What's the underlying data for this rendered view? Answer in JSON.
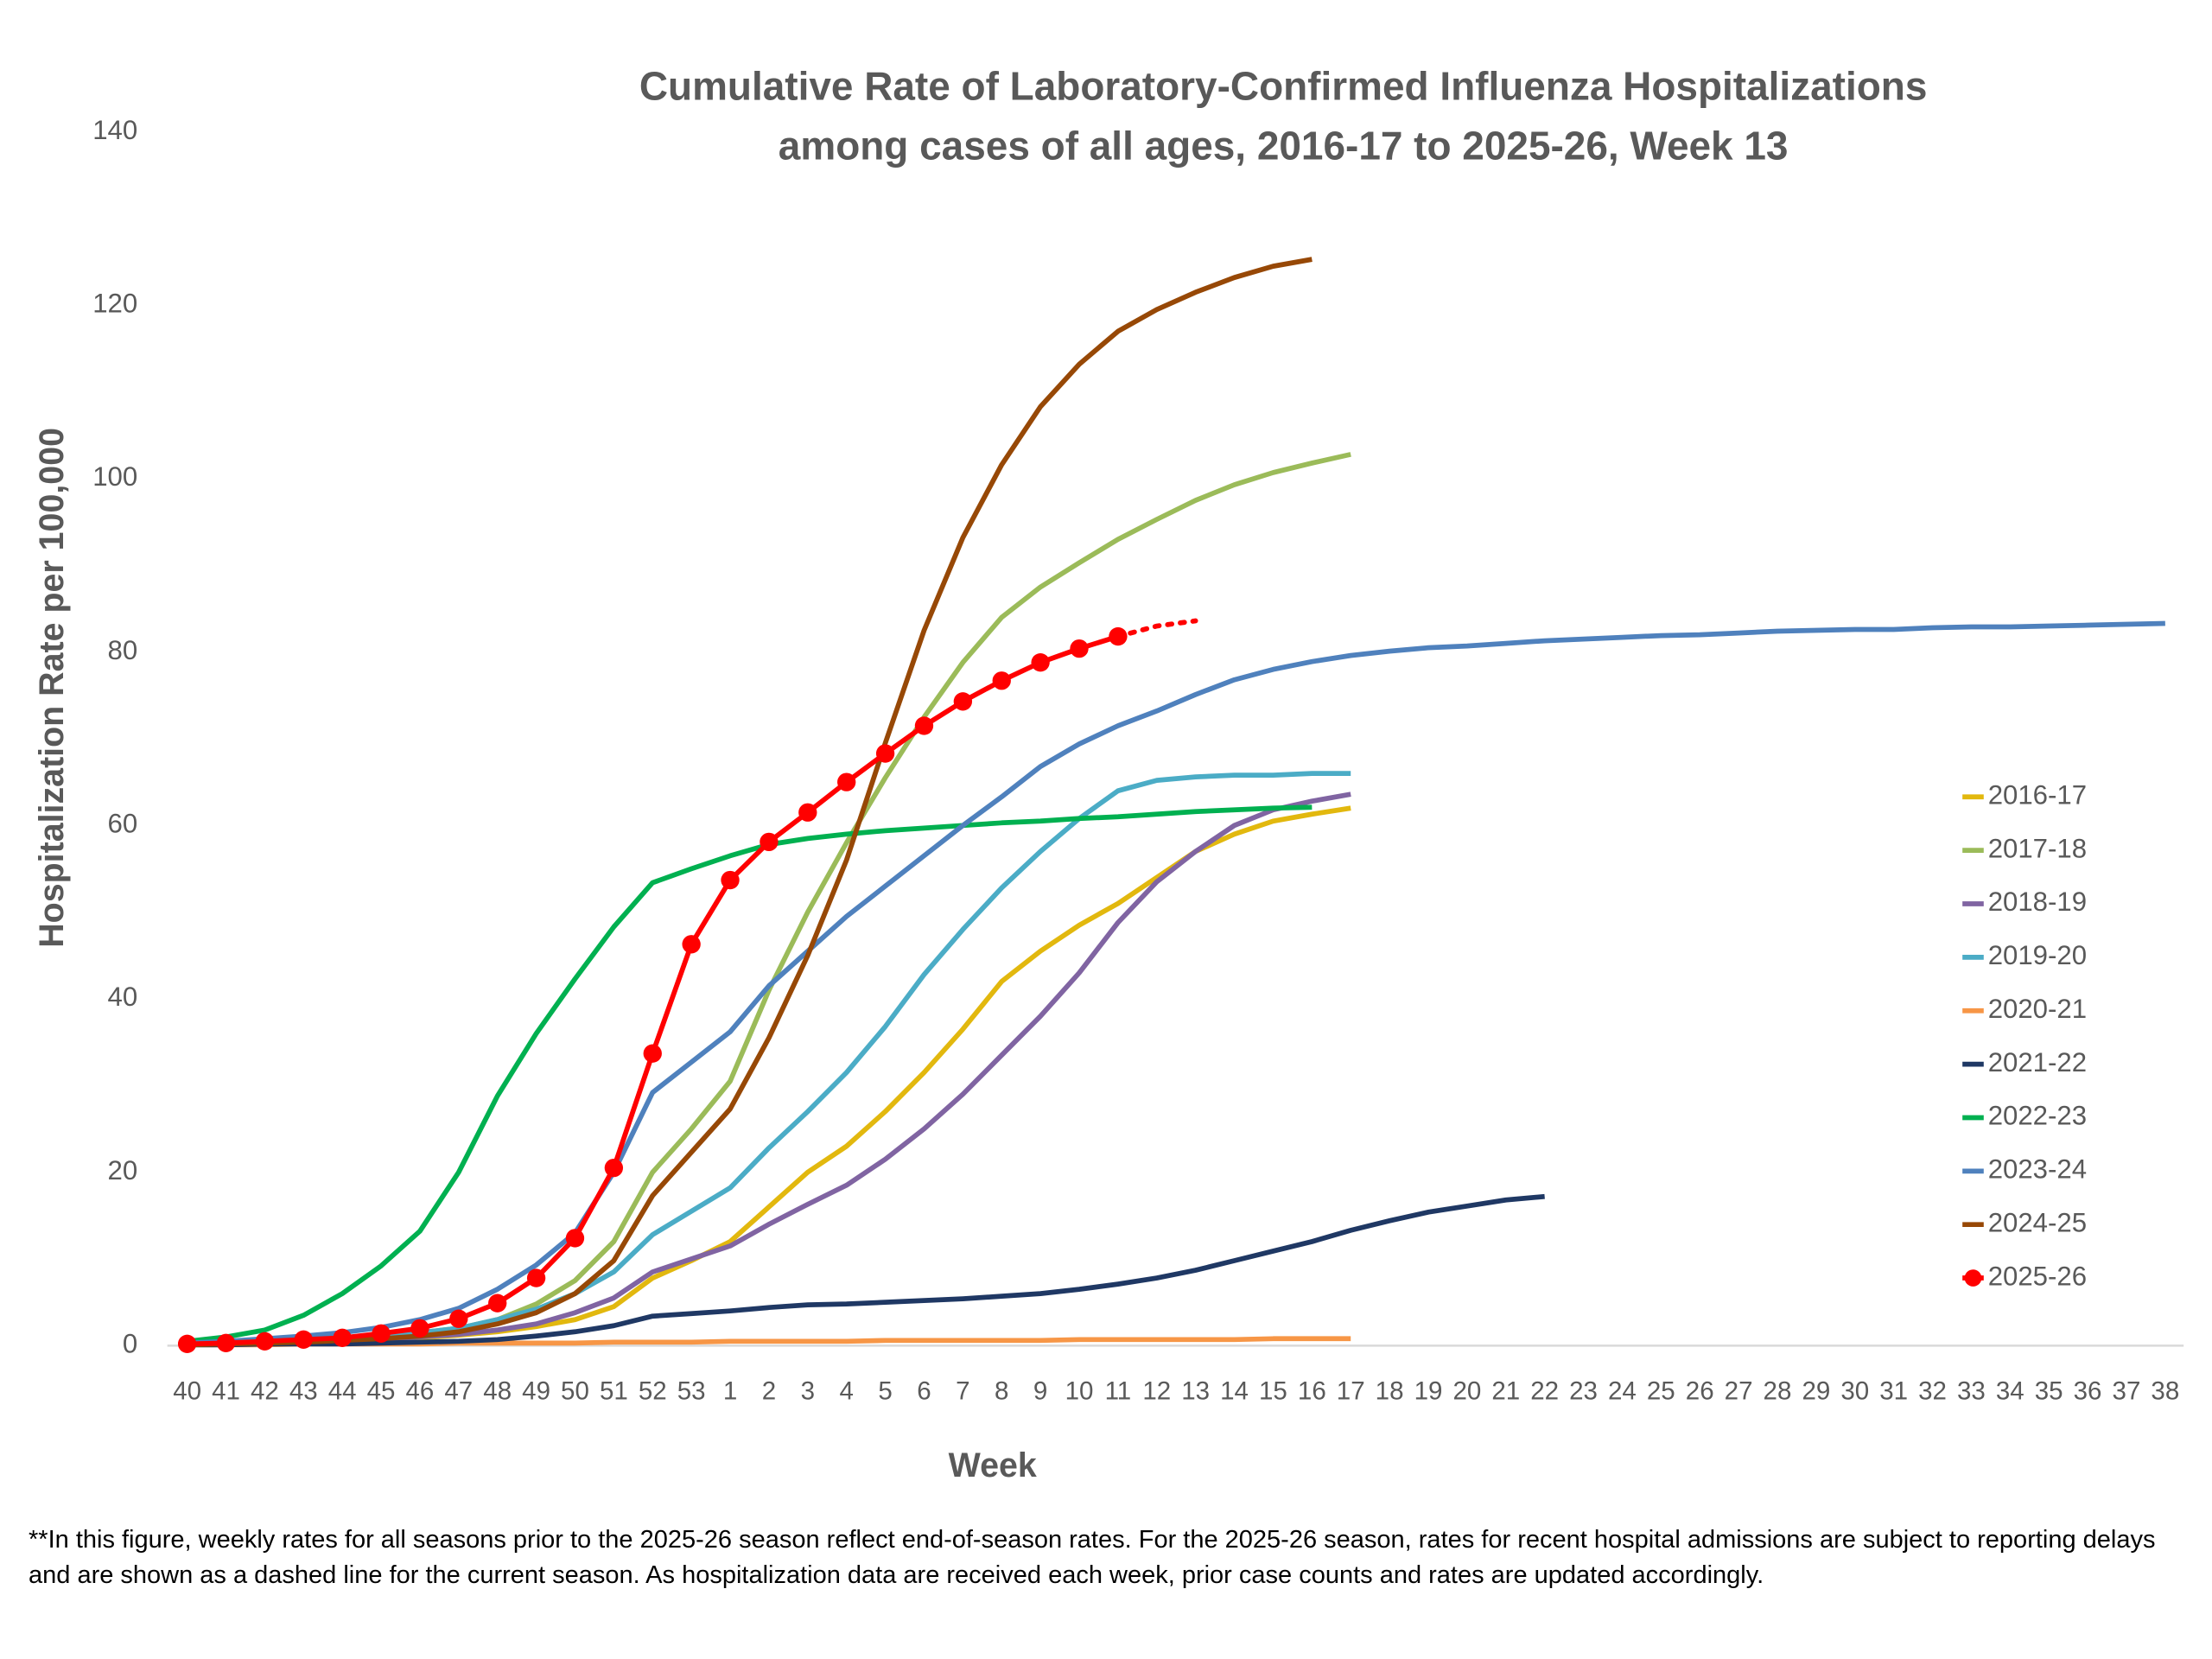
{
  "chart_data": {
    "type": "line",
    "title": [
      "Cumulative Rate of Laboratory-Confirmed Influenza Hospitalizations",
      "among cases of all ages, 2016-17 to 2025-26, Week 13"
    ],
    "x_label": "Week",
    "y_label": "Hospitalization Rate per 100,000",
    "footnote": "**In this figure, weekly rates for all seasons prior to the 2025-26 season reflect end-of-season rates. For the 2025-26 season, rates for recent hospital admissions are subject to reporting delays and are shown as a dashed line for the current season. As hospitalization data are received each week, prior case counts and rates are updated accordingly.",
    "categories": [
      "40",
      "41",
      "42",
      "43",
      "44",
      "45",
      "46",
      "47",
      "48",
      "49",
      "50",
      "51",
      "52",
      "53",
      "1",
      "2",
      "3",
      "4",
      "5",
      "6",
      "7",
      "8",
      "9",
      "10",
      "11",
      "12",
      "13",
      "14",
      "15",
      "16",
      "17",
      "18",
      "19",
      "20",
      "21",
      "22",
      "23",
      "24",
      "25",
      "26",
      "27",
      "28",
      "29",
      "30",
      "31",
      "32",
      "33",
      "34",
      "35",
      "36",
      "37",
      "38"
    ],
    "ylim": [
      0,
      140
    ],
    "yticks": [
      0,
      20,
      40,
      60,
      80,
      100,
      120,
      140
    ],
    "grid": false,
    "legend": "right",
    "series": [
      {
        "name": "2016-17",
        "color": "#e2b80e",
        "values": [
          0.1,
          0.2,
          0.3,
          0.4,
          0.5,
          0.7,
          0.9,
          1.2,
          1.6,
          2.2,
          3.0,
          4.5,
          7.8,
          9.8,
          12,
          16,
          20,
          23,
          27,
          31.5,
          36.5,
          42,
          45.5,
          48.5,
          51,
          54,
          57,
          59,
          60.5,
          61.3,
          62,
          null,
          null,
          null,
          null,
          null,
          null,
          null,
          null,
          null,
          null,
          null,
          null,
          null,
          null,
          null,
          null,
          null,
          null,
          null,
          null,
          null
        ]
      },
      {
        "name": "2017-18",
        "color": "#9bbb59",
        "values": [
          0.1,
          0.2,
          0.3,
          0.5,
          0.7,
          1,
          1.5,
          2,
          3,
          4.8,
          7.5,
          12,
          20,
          25,
          30.5,
          41,
          50,
          58,
          65.5,
          72.5,
          78.8,
          84,
          87.5,
          90.3,
          93,
          95.3,
          97.5,
          99.3,
          100.7,
          101.8,
          102.8,
          null,
          null,
          null,
          null,
          null,
          null,
          null,
          null,
          null,
          null,
          null,
          null,
          null,
          null,
          null,
          null,
          null,
          null,
          null,
          null,
          null
        ]
      },
      {
        "name": "2018-19",
        "color": "#8064a2",
        "values": [
          0.1,
          0.2,
          0.3,
          0.4,
          0.5,
          0.7,
          1,
          1.3,
          1.8,
          2.5,
          3.8,
          5.5,
          8.5,
          10,
          11.5,
          14,
          16.3,
          18.5,
          21.5,
          25,
          29,
          33.5,
          38,
          43,
          48.8,
          53.5,
          57,
          60,
          61.8,
          62.8,
          63.6,
          null,
          null,
          null,
          null,
          null,
          null,
          null,
          null,
          null,
          null,
          null,
          null,
          null,
          null,
          null,
          null,
          null,
          null,
          null,
          null,
          null
        ]
      },
      {
        "name": "2019-20",
        "color": "#4bacc6",
        "values": [
          0.1,
          0.2,
          0.4,
          0.6,
          0.8,
          1.1,
          1.5,
          2,
          3,
          4.2,
          6,
          8.5,
          12.8,
          15.5,
          18.2,
          22.8,
          27,
          31.5,
          36.8,
          42.8,
          48,
          52.8,
          57,
          60.8,
          64,
          65.2,
          65.6,
          65.8,
          65.8,
          66,
          66,
          null,
          null,
          null,
          null,
          null,
          null,
          null,
          null,
          null,
          null,
          null,
          null,
          null,
          null,
          null,
          null,
          null,
          null,
          null,
          null,
          null
        ]
      },
      {
        "name": "2020-21",
        "color": "#f79646",
        "values": [
          0.1,
          0.1,
          0.1,
          0.2,
          0.2,
          0.2,
          0.2,
          0.3,
          0.3,
          0.3,
          0.3,
          0.4,
          0.4,
          0.4,
          0.5,
          0.5,
          0.5,
          0.5,
          0.6,
          0.6,
          0.6,
          0.6,
          0.6,
          0.7,
          0.7,
          0.7,
          0.7,
          0.7,
          0.8,
          0.8,
          0.8,
          null,
          null,
          null,
          null,
          null,
          null,
          null,
          null,
          null,
          null,
          null,
          null,
          null,
          null,
          null,
          null,
          null,
          null,
          null,
          null,
          null
        ]
      },
      {
        "name": "2021-22",
        "color": "#1f3864",
        "values": [
          0.1,
          0.1,
          0.2,
          0.2,
          0.2,
          0.3,
          0.4,
          0.5,
          0.7,
          1.1,
          1.6,
          2.3,
          3.4,
          3.7,
          4,
          4.4,
          4.7,
          4.8,
          5,
          5.2,
          5.4,
          5.7,
          6,
          6.5,
          7.1,
          7.8,
          8.7,
          9.8,
          10.9,
          12,
          13.3,
          14.4,
          15.4,
          16.1,
          16.8,
          17.2,
          null,
          null,
          null,
          null,
          null,
          null,
          null,
          null,
          null,
          null,
          null,
          null,
          null,
          null,
          null,
          null
        ]
      },
      {
        "name": "2022-23",
        "color": "#00b050",
        "values": [
          0.5,
          1,
          1.8,
          3.5,
          6,
          9.2,
          13.2,
          20,
          28.8,
          36,
          42.3,
          48.3,
          53.4,
          55,
          56.5,
          57.8,
          58.5,
          59,
          59.4,
          59.7,
          60,
          60.3,
          60.5,
          60.8,
          61,
          61.3,
          61.6,
          61.8,
          62,
          62.1,
          null,
          null,
          null,
          null,
          null,
          null,
          null,
          null,
          null,
          null,
          null,
          null,
          null,
          null,
          null,
          null,
          null,
          null,
          null,
          null,
          null,
          null
        ]
      },
      {
        "name": "2023-24",
        "color": "#4f81bd",
        "values": [
          0.3,
          0.5,
          0.8,
          1.1,
          1.5,
          2.1,
          3,
          4.3,
          6.5,
          9.3,
          13,
          20,
          29.2,
          32.7,
          36.2,
          41.5,
          45.5,
          49.5,
          53,
          56.5,
          60,
          63.3,
          66.8,
          69.4,
          71.5,
          73.2,
          75.1,
          76.8,
          78,
          78.9,
          79.6,
          80.1,
          80.5,
          80.7,
          81,
          81.3,
          81.5,
          81.7,
          81.9,
          82,
          82.2,
          82.4,
          82.5,
          82.6,
          82.6,
          82.8,
          82.9,
          82.9,
          83,
          83.1,
          83.2,
          83.3
        ]
      },
      {
        "name": "2024-25",
        "color": "#974806",
        "values": [
          0.1,
          0.2,
          0.3,
          0.4,
          0.6,
          0.8,
          1.1,
          1.6,
          2.5,
          3.8,
          6,
          9.8,
          17.3,
          22.3,
          27.3,
          35.5,
          45,
          56,
          69.5,
          82.5,
          93.2,
          101.6,
          108.3,
          113.2,
          117,
          119.5,
          121.5,
          123.2,
          124.5,
          125.3,
          null,
          null,
          null,
          null,
          null,
          null,
          null,
          null,
          null,
          null,
          null,
          null,
          null,
          null,
          null,
          null,
          null,
          null,
          null,
          null,
          null,
          null
        ]
      },
      {
        "name": "2025-26",
        "color": "#ff0000",
        "markers": true,
        "dashed_segments": 2,
        "values": [
          0.2,
          0.3,
          0.5,
          0.7,
          0.9,
          1.4,
          2,
          3.1,
          4.9,
          7.8,
          12.4,
          20.5,
          33.7,
          46.3,
          53.7,
          58.1,
          61.5,
          65,
          68.3,
          71.5,
          74.3,
          76.7,
          78.8,
          80.4,
          81.8,
          83,
          83.6,
          null,
          null,
          null,
          null,
          null,
          null,
          null,
          null,
          null,
          null,
          null,
          null,
          null,
          null,
          null,
          null,
          null,
          null,
          null,
          null,
          null,
          null,
          null,
          null,
          null
        ]
      }
    ]
  }
}
